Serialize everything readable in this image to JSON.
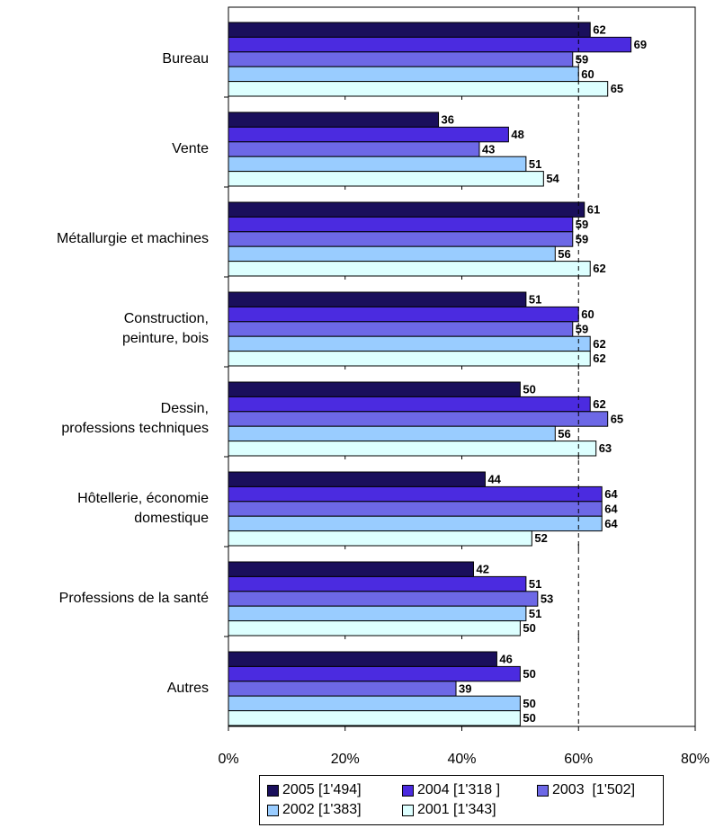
{
  "chart_data": {
    "type": "bar",
    "orientation": "horizontal",
    "categories": [
      "Bureau",
      "Vente",
      "Métallurgie et machines",
      "Construction,\npeinture, bois",
      "Dessin,\nprofessions techniques",
      "Hôtellerie, économie\ndomestique",
      "Professions de la santé",
      "Autres"
    ],
    "series": [
      {
        "name": "2005 [1'494]",
        "color": "#1a0f5c",
        "values": [
          62,
          36,
          61,
          51,
          50,
          44,
          42,
          46
        ]
      },
      {
        "name": "2004 [1'318 ]",
        "color": "#4b2be0",
        "values": [
          69,
          48,
          59,
          60,
          62,
          64,
          51,
          50
        ]
      },
      {
        "name": "2003  [1'502]",
        "color": "#6d68e6",
        "values": [
          59,
          43,
          59,
          59,
          65,
          64,
          53,
          39
        ]
      },
      {
        "name": "2002 [1'383]",
        "color": "#99ccff",
        "values": [
          60,
          51,
          56,
          62,
          56,
          64,
          51,
          50
        ]
      },
      {
        "name": "2001 [1'343]",
        "color": "#ddffff",
        "values": [
          65,
          54,
          62,
          62,
          63,
          52,
          50,
          50
        ]
      }
    ],
    "xlim": [
      0,
      80
    ],
    "xticks": [
      {
        "value": 0,
        "label": "0%"
      },
      {
        "value": 20,
        "label": "20%"
      },
      {
        "value": 40,
        "label": "40%"
      },
      {
        "value": 60,
        "label": "60%"
      },
      {
        "value": 80,
        "label": "80%"
      }
    ],
    "reference_line": 60,
    "legend": "bottom"
  }
}
